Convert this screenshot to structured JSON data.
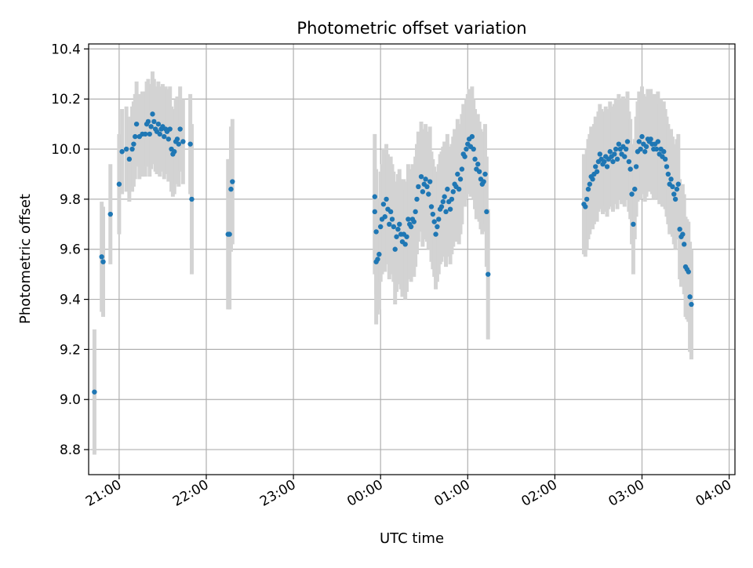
{
  "chart_data": {
    "type": "scatter",
    "title": "Photometric offset variation",
    "xlabel": "UTC time",
    "ylabel": "Photometric offset",
    "x_axis_type": "time",
    "x_ticks": [
      "21:00",
      "22:00",
      "23:00",
      "00:00",
      "01:00",
      "02:00",
      "03:00",
      "04:00"
    ],
    "xlim": [
      "20:39",
      "04:04"
    ],
    "ylim": [
      8.7,
      10.42
    ],
    "y_ticks": [
      8.8,
      9.0,
      9.2,
      9.4,
      9.6,
      9.8,
      10.0,
      10.2,
      10.4
    ],
    "grid": true,
    "marker_color": "#1f77b4",
    "errorbar_color": "#d3d3d3",
    "series": [
      {
        "points": [
          [
            "20:43",
            9.03,
            0.25
          ],
          [
            "20:48",
            9.57,
            0.22
          ],
          [
            "20:49",
            9.55,
            0.22
          ],
          [
            "20:54",
            9.74,
            0.2
          ],
          [
            "21:00",
            9.86,
            0.2
          ],
          [
            "21:02",
            9.99,
            0.17
          ],
          [
            "21:05",
            10.0,
            0.17
          ],
          [
            "21:07",
            9.96,
            0.17
          ],
          [
            "21:09",
            10.0,
            0.17
          ],
          [
            "21:10",
            10.02,
            0.17
          ],
          [
            "21:11",
            10.05,
            0.17
          ],
          [
            "21:12",
            10.1,
            0.17
          ],
          [
            "21:14",
            10.05,
            0.17
          ],
          [
            "21:16",
            10.06,
            0.17
          ],
          [
            "21:18",
            10.06,
            0.17
          ],
          [
            "21:19",
            10.1,
            0.17
          ],
          [
            "21:20",
            10.11,
            0.17
          ],
          [
            "21:21",
            10.06,
            0.17
          ],
          [
            "21:22",
            10.09,
            0.17
          ],
          [
            "21:23",
            10.14,
            0.17
          ],
          [
            "21:24",
            10.11,
            0.17
          ],
          [
            "21:25",
            10.08,
            0.17
          ],
          [
            "21:26",
            10.07,
            0.17
          ],
          [
            "21:27",
            10.1,
            0.17
          ],
          [
            "21:28",
            10.06,
            0.17
          ],
          [
            "21:29",
            10.08,
            0.17
          ],
          [
            "21:30",
            10.09,
            0.17
          ],
          [
            "21:31",
            10.05,
            0.17
          ],
          [
            "21:32",
            10.08,
            0.17
          ],
          [
            "21:33",
            10.07,
            0.17
          ],
          [
            "21:34",
            10.04,
            0.17
          ],
          [
            "21:35",
            10.08,
            0.17
          ],
          [
            "21:36",
            10.0,
            0.17
          ],
          [
            "21:37",
            9.98,
            0.17
          ],
          [
            "21:38",
            9.99,
            0.17
          ],
          [
            "21:39",
            10.03,
            0.17
          ],
          [
            "21:40",
            10.04,
            0.17
          ],
          [
            "21:41",
            10.02,
            0.17
          ],
          [
            "21:42",
            10.08,
            0.17
          ],
          [
            "21:44",
            10.03,
            0.17
          ],
          [
            "21:49",
            10.02,
            0.2
          ],
          [
            "21:50",
            9.8,
            0.3
          ],
          [
            "22:15",
            9.66,
            0.3
          ],
          [
            "22:16",
            9.66,
            0.3
          ],
          [
            "22:17",
            9.84,
            0.25
          ],
          [
            "22:18",
            9.87,
            0.25
          ],
          [
            "23:56",
            9.81,
            0.25
          ],
          [
            "23:56",
            9.75,
            0.25
          ],
          [
            "23:57",
            9.67,
            0.25
          ],
          [
            "23:57",
            9.55,
            0.25
          ],
          [
            "23:58",
            9.56,
            0.22
          ],
          [
            "23:59",
            9.58,
            0.22
          ],
          [
            "00:00",
            9.69,
            0.22
          ],
          [
            "00:01",
            9.72,
            0.22
          ],
          [
            "00:02",
            9.78,
            0.22
          ],
          [
            "00:03",
            9.73,
            0.22
          ],
          [
            "00:04",
            9.8,
            0.22
          ],
          [
            "00:05",
            9.76,
            0.22
          ],
          [
            "00:06",
            9.7,
            0.22
          ],
          [
            "00:07",
            9.75,
            0.22
          ],
          [
            "00:08",
            9.72,
            0.22
          ],
          [
            "00:09",
            9.69,
            0.22
          ],
          [
            "00:10",
            9.6,
            0.22
          ],
          [
            "00:11",
            9.65,
            0.22
          ],
          [
            "00:12",
            9.68,
            0.22
          ],
          [
            "00:13",
            9.7,
            0.22
          ],
          [
            "00:14",
            9.66,
            0.22
          ],
          [
            "00:15",
            9.63,
            0.22
          ],
          [
            "00:16",
            9.66,
            0.22
          ],
          [
            "00:17",
            9.62,
            0.22
          ],
          [
            "00:18",
            9.65,
            0.22
          ],
          [
            "00:19",
            9.72,
            0.22
          ],
          [
            "00:20",
            9.7,
            0.22
          ],
          [
            "00:21",
            9.69,
            0.22
          ],
          [
            "00:22",
            9.72,
            0.22
          ],
          [
            "00:23",
            9.71,
            0.22
          ],
          [
            "00:24",
            9.75,
            0.22
          ],
          [
            "00:25",
            9.8,
            0.22
          ],
          [
            "00:26",
            9.85,
            0.22
          ],
          [
            "00:28",
            9.89,
            0.22
          ],
          [
            "00:29",
            9.83,
            0.22
          ],
          [
            "00:30",
            9.86,
            0.22
          ],
          [
            "00:31",
            9.88,
            0.22
          ],
          [
            "00:32",
            9.85,
            0.22
          ],
          [
            "00:33",
            9.82,
            0.22
          ],
          [
            "00:34",
            9.87,
            0.22
          ],
          [
            "00:35",
            9.77,
            0.22
          ],
          [
            "00:36",
            9.74,
            0.22
          ],
          [
            "00:37",
            9.71,
            0.22
          ],
          [
            "00:38",
            9.66,
            0.22
          ],
          [
            "00:39",
            9.69,
            0.22
          ],
          [
            "00:40",
            9.72,
            0.22
          ],
          [
            "00:41",
            9.76,
            0.22
          ],
          [
            "00:42",
            9.77,
            0.22
          ],
          [
            "00:43",
            9.79,
            0.22
          ],
          [
            "00:44",
            9.81,
            0.22
          ],
          [
            "00:45",
            9.75,
            0.22
          ],
          [
            "00:46",
            9.84,
            0.22
          ],
          [
            "00:47",
            9.79,
            0.22
          ],
          [
            "00:48",
            9.76,
            0.22
          ],
          [
            "00:49",
            9.8,
            0.22
          ],
          [
            "00:50",
            9.83,
            0.22
          ],
          [
            "00:51",
            9.86,
            0.22
          ],
          [
            "00:52",
            9.85,
            0.22
          ],
          [
            "00:53",
            9.9,
            0.22
          ],
          [
            "00:54",
            9.84,
            0.22
          ],
          [
            "00:55",
            9.88,
            0.22
          ],
          [
            "00:56",
            9.92,
            0.22
          ],
          [
            "00:57",
            9.98,
            0.2
          ],
          [
            "00:58",
            9.97,
            0.2
          ],
          [
            "00:59",
            10.0,
            0.2
          ],
          [
            "01:00",
            10.02,
            0.2
          ],
          [
            "01:01",
            10.04,
            0.2
          ],
          [
            "01:02",
            10.01,
            0.2
          ],
          [
            "01:03",
            10.05,
            0.2
          ],
          [
            "01:04",
            10.0,
            0.2
          ],
          [
            "01:05",
            9.96,
            0.2
          ],
          [
            "01:06",
            9.92,
            0.2
          ],
          [
            "01:07",
            9.94,
            0.2
          ],
          [
            "01:08",
            9.91,
            0.2
          ],
          [
            "01:09",
            9.88,
            0.2
          ],
          [
            "01:10",
            9.86,
            0.2
          ],
          [
            "01:11",
            9.87,
            0.2
          ],
          [
            "01:12",
            9.9,
            0.2
          ],
          [
            "01:13",
            9.75,
            0.22
          ],
          [
            "01:14",
            9.5,
            0.26
          ],
          [
            "02:20",
            9.78,
            0.2
          ],
          [
            "02:21",
            9.77,
            0.2
          ],
          [
            "02:22",
            9.8,
            0.2
          ],
          [
            "02:23",
            9.84,
            0.2
          ],
          [
            "02:24",
            9.86,
            0.2
          ],
          [
            "02:25",
            9.89,
            0.2
          ],
          [
            "02:26",
            9.88,
            0.2
          ],
          [
            "02:27",
            9.9,
            0.2
          ],
          [
            "02:28",
            9.93,
            0.2
          ],
          [
            "02:29",
            9.91,
            0.2
          ],
          [
            "02:30",
            9.95,
            0.2
          ],
          [
            "02:31",
            9.98,
            0.2
          ],
          [
            "02:32",
            9.96,
            0.2
          ],
          [
            "02:33",
            9.94,
            0.2
          ],
          [
            "02:34",
            9.95,
            0.2
          ],
          [
            "02:35",
            9.97,
            0.2
          ],
          [
            "02:36",
            9.93,
            0.2
          ],
          [
            "02:37",
            9.96,
            0.2
          ],
          [
            "02:38",
            9.99,
            0.2
          ],
          [
            "02:39",
            9.97,
            0.2
          ],
          [
            "02:40",
            9.95,
            0.2
          ],
          [
            "02:41",
            9.98,
            0.2
          ],
          [
            "02:42",
            10.0,
            0.2
          ],
          [
            "02:43",
            9.96,
            0.2
          ],
          [
            "02:44",
            10.02,
            0.2
          ],
          [
            "02:45",
            10.0,
            0.2
          ],
          [
            "02:46",
            9.98,
            0.2
          ],
          [
            "02:47",
            10.01,
            0.2
          ],
          [
            "02:48",
            9.97,
            0.2
          ],
          [
            "02:49",
            10.0,
            0.2
          ],
          [
            "02:50",
            10.03,
            0.2
          ],
          [
            "02:51",
            9.95,
            0.2
          ],
          [
            "02:52",
            9.92,
            0.2
          ],
          [
            "02:53",
            9.82,
            0.2
          ],
          [
            "02:54",
            9.7,
            0.2
          ],
          [
            "02:55",
            9.84,
            0.2
          ],
          [
            "02:56",
            9.93,
            0.2
          ],
          [
            "02:57",
            9.99,
            0.2
          ],
          [
            "02:58",
            10.03,
            0.2
          ],
          [
            "02:59",
            10.0,
            0.2
          ],
          [
            "03:00",
            10.05,
            0.2
          ],
          [
            "03:01",
            10.02,
            0.2
          ],
          [
            "03:02",
            9.99,
            0.2
          ],
          [
            "03:03",
            10.01,
            0.2
          ],
          [
            "03:04",
            10.04,
            0.2
          ],
          [
            "03:05",
            10.03,
            0.2
          ],
          [
            "03:06",
            10.04,
            0.2
          ],
          [
            "03:07",
            10.02,
            0.2
          ],
          [
            "03:08",
            10.0,
            0.2
          ],
          [
            "03:09",
            10.02,
            0.2
          ],
          [
            "03:10",
            10.0,
            0.2
          ],
          [
            "03:11",
            10.03,
            0.2
          ],
          [
            "03:12",
            9.98,
            0.2
          ],
          [
            "03:13",
            10.0,
            0.2
          ],
          [
            "03:14",
            9.97,
            0.2
          ],
          [
            "03:15",
            9.99,
            0.2
          ],
          [
            "03:16",
            9.96,
            0.2
          ],
          [
            "03:17",
            9.93,
            0.2
          ],
          [
            "03:18",
            9.9,
            0.2
          ],
          [
            "03:19",
            9.86,
            0.2
          ],
          [
            "03:20",
            9.88,
            0.2
          ],
          [
            "03:21",
            9.85,
            0.2
          ],
          [
            "03:22",
            9.82,
            0.2
          ],
          [
            "03:23",
            9.8,
            0.2
          ],
          [
            "03:24",
            9.84,
            0.2
          ],
          [
            "03:25",
            9.86,
            0.2
          ],
          [
            "03:26",
            9.68,
            0.2
          ],
          [
            "03:27",
            9.65,
            0.2
          ],
          [
            "03:28",
            9.66,
            0.2
          ],
          [
            "03:29",
            9.62,
            0.2
          ],
          [
            "03:30",
            9.53,
            0.2
          ],
          [
            "03:31",
            9.52,
            0.2
          ],
          [
            "03:32",
            9.51,
            0.2
          ],
          [
            "03:33",
            9.41,
            0.22
          ],
          [
            "03:34",
            9.38,
            0.22
          ]
        ]
      }
    ]
  }
}
